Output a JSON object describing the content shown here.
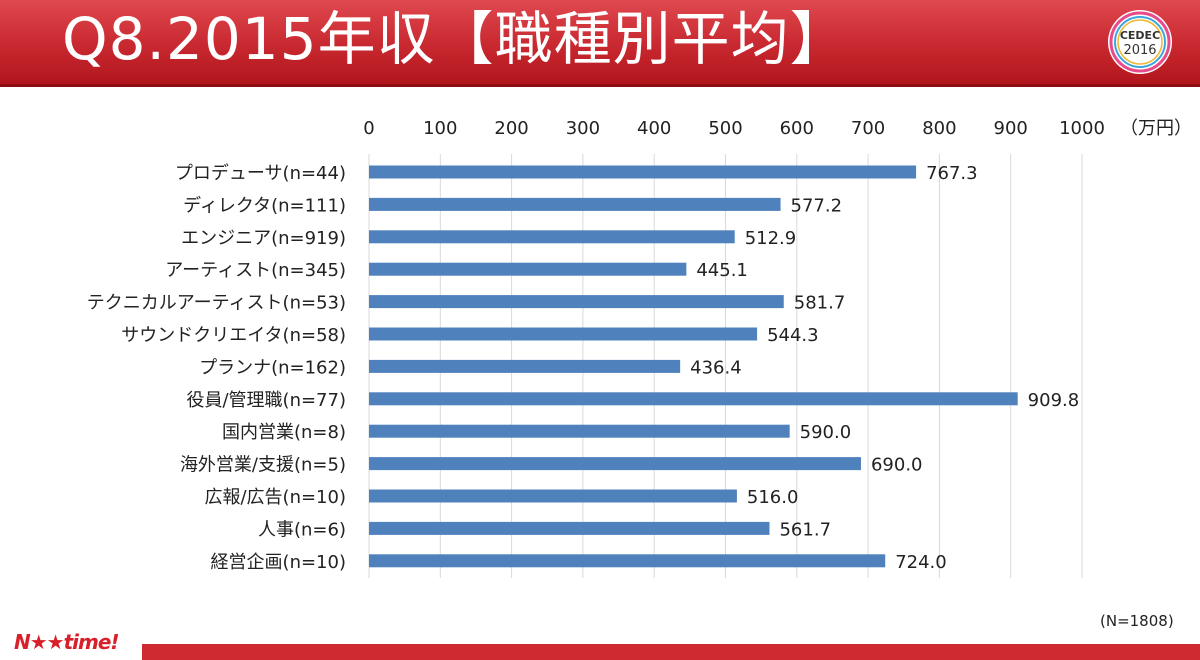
{
  "header": {
    "title": "Q8.2015年収【職種別平均】"
  },
  "logo": {
    "line1": "CEDEC",
    "line2": "2016"
  },
  "footer": {
    "brand": "N★★time!",
    "n_note": "(N=1808)"
  },
  "colors": {
    "bar": "#4f81bd",
    "header": "#c8282f",
    "grid": "#d9d9d9"
  },
  "chart_data": {
    "type": "bar",
    "orientation": "horizontal",
    "title": "",
    "xlabel": "",
    "ylabel": "",
    "unit": "（万円）",
    "xlim": [
      0,
      1000
    ],
    "ticks": [
      0,
      100,
      200,
      300,
      400,
      500,
      600,
      700,
      800,
      900,
      1000
    ],
    "grid": true,
    "categories": [
      "プロデューサ(n=44)",
      "ディレクタ(n=111)",
      "エンジニア(n=919)",
      "アーティスト(n=345)",
      "テクニカルアーティスト(n=53)",
      "サウンドクリエイタ(n=58)",
      "プランナ(n=162)",
      "役員/管理職(n=77)",
      "国内営業(n=8)",
      "海外営業/支援(n=5)",
      "広報/広告(n=10)",
      "人事(n=6)",
      "経営企画(n=10)"
    ],
    "values": [
      767.3,
      577.2,
      512.9,
      445.1,
      581.7,
      544.3,
      436.4,
      909.8,
      590.0,
      690.0,
      516.0,
      561.7,
      724.0
    ],
    "value_labels": [
      "767.3",
      "577.2",
      "512.9",
      "445.1",
      "581.7",
      "544.3",
      "436.4",
      "909.8",
      "590.0",
      "690.0",
      "516.0",
      "561.7",
      "724.0"
    ]
  }
}
